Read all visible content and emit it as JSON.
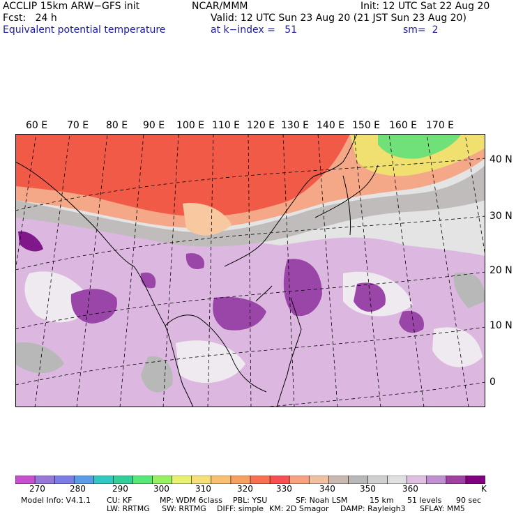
{
  "header": {
    "model": "ACCLIP 15km ARW−GFS init",
    "org": "NCAR/MMM",
    "init": "Init: 12 UTC Sat 22 Aug 20",
    "fcst": "Fcst:   24 h",
    "valid": "Valid: 12 UTC Sun 23 Aug 20 (21 JST Sun 23 Aug 20)",
    "field": "Equivalent potential temperature",
    "level": "at k−index =   51",
    "smooth": "sm=  2"
  },
  "map": {
    "lon_labels": [
      "60 E",
      "70 E",
      "80 E",
      "90 E",
      "100 E",
      "110 E",
      "120 E",
      "130 E",
      "140 E",
      "150 E",
      "160 E",
      "170 E"
    ],
    "lat_labels": [
      "40 N",
      "30 N",
      "20 N",
      "10 N",
      "0"
    ]
  },
  "colorbar": {
    "colors": [
      "#c650d0",
      "#9678d8",
      "#7c7ce6",
      "#5a9ce8",
      "#30c8c0",
      "#30d098",
      "#58e878",
      "#98f060",
      "#e8f070",
      "#f8e078",
      "#f8c070",
      "#f8a060",
      "#f87050",
      "#f85050",
      "#f8a080",
      "#f0c0a0",
      "#c8b8b0",
      "#b8b8b8",
      "#d0d0d0",
      "#e0e0e0",
      "#e0c0e0",
      "#c090d0",
      "#a040a0",
      "#800080"
    ],
    "ticks": [
      "270",
      "280",
      "290",
      "300",
      "310",
      "320",
      "330",
      "340",
      "350",
      "360",
      "K"
    ]
  },
  "footer": {
    "line1": [
      "Model Info: V4.1.1",
      "CU: KF",
      "MP: WDM 6class",
      "PBL: YSU",
      "SF: Noah LSM",
      "15 km",
      "51 levels",
      "90 sec"
    ],
    "line2": [
      "LW: RRTMG",
      "SW: RRTMG",
      "DIFF: simple",
      "KM: 2D Smagor",
      "DAMP: Rayleigh3",
      "SFLAY: MM5"
    ]
  }
}
